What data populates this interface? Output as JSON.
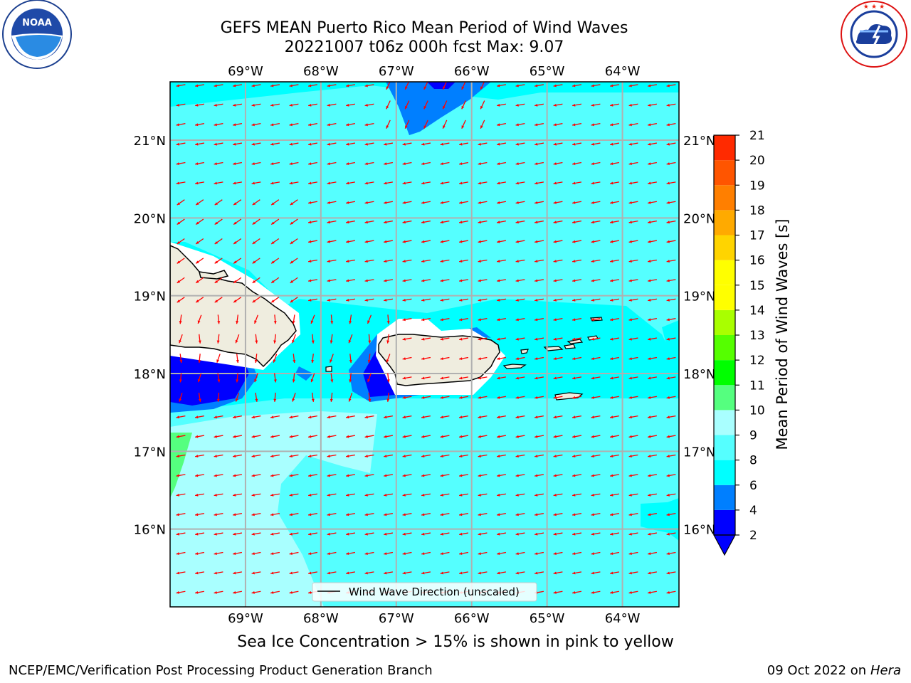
{
  "title": {
    "line1": "GEFS MEAN Puerto Rico Mean Period of Wind Waves",
    "line2": "20221007 t06z 000h fcst   Max: 9.07"
  },
  "logos": {
    "left": {
      "name": "noaa-logo",
      "text": "NOAA",
      "ring_text": "NATIONAL OCEANIC AND ATMOSPHERIC ADMINISTRATION · U.S. DEPARTMENT OF COMMERCE"
    },
    "right": {
      "name": "nws-logo",
      "ring_text": "NATIONAL WEATHER SERVICE"
    }
  },
  "map": {
    "lon_ticks": [
      "69°W",
      "68°W",
      "67°W",
      "66°W",
      "65°W",
      "64°W"
    ],
    "lat_ticks": [
      "21°N",
      "20°N",
      "19°N",
      "18°N",
      "17°N",
      "16°N"
    ],
    "lon_values": [
      -69,
      -68,
      -67,
      -66,
      -65,
      -64
    ],
    "lat_values": [
      21,
      20,
      19,
      18,
      17,
      16
    ],
    "extent": {
      "lon_min": -70.0,
      "lon_max": -63.25,
      "lat_min": 15.0,
      "lat_max": 21.75
    },
    "legend_label": "Wind Wave Direction (unscaled)",
    "colors": {
      "ocean_base": "#00ffff",
      "land": "#efeddf",
      "arrow": "#ff0000",
      "grid": "#b0b0b0"
    }
  },
  "colorbar": {
    "label": "Mean Period of Wind Waves [s]",
    "ticks": [
      "2",
      "4",
      "6",
      "8",
      "9",
      "10",
      "11",
      "12",
      "13",
      "14",
      "15",
      "16",
      "17",
      "18",
      "19",
      "20",
      "21"
    ],
    "colors": [
      "#0000ff",
      "#007fff",
      "#00ffff",
      "#55ffff",
      "#a9ffff",
      "#55ff7f",
      "#00ff00",
      "#55ff00",
      "#a9ff00",
      "#ffff00",
      "#ffff00",
      "#ffd400",
      "#ffaa00",
      "#ff7f00",
      "#ff5500",
      "#ff2a00",
      "#ff0000"
    ],
    "under_color": "#0000ff"
  },
  "subtitle": "Sea Ice Concentration > 15% is shown in pink to yellow",
  "footer": {
    "left": "NCEP/EMC/Verification Post Processing Product Generation Branch",
    "right_prefix": "09 Oct 2022 on ",
    "right_host": "Hera"
  }
}
